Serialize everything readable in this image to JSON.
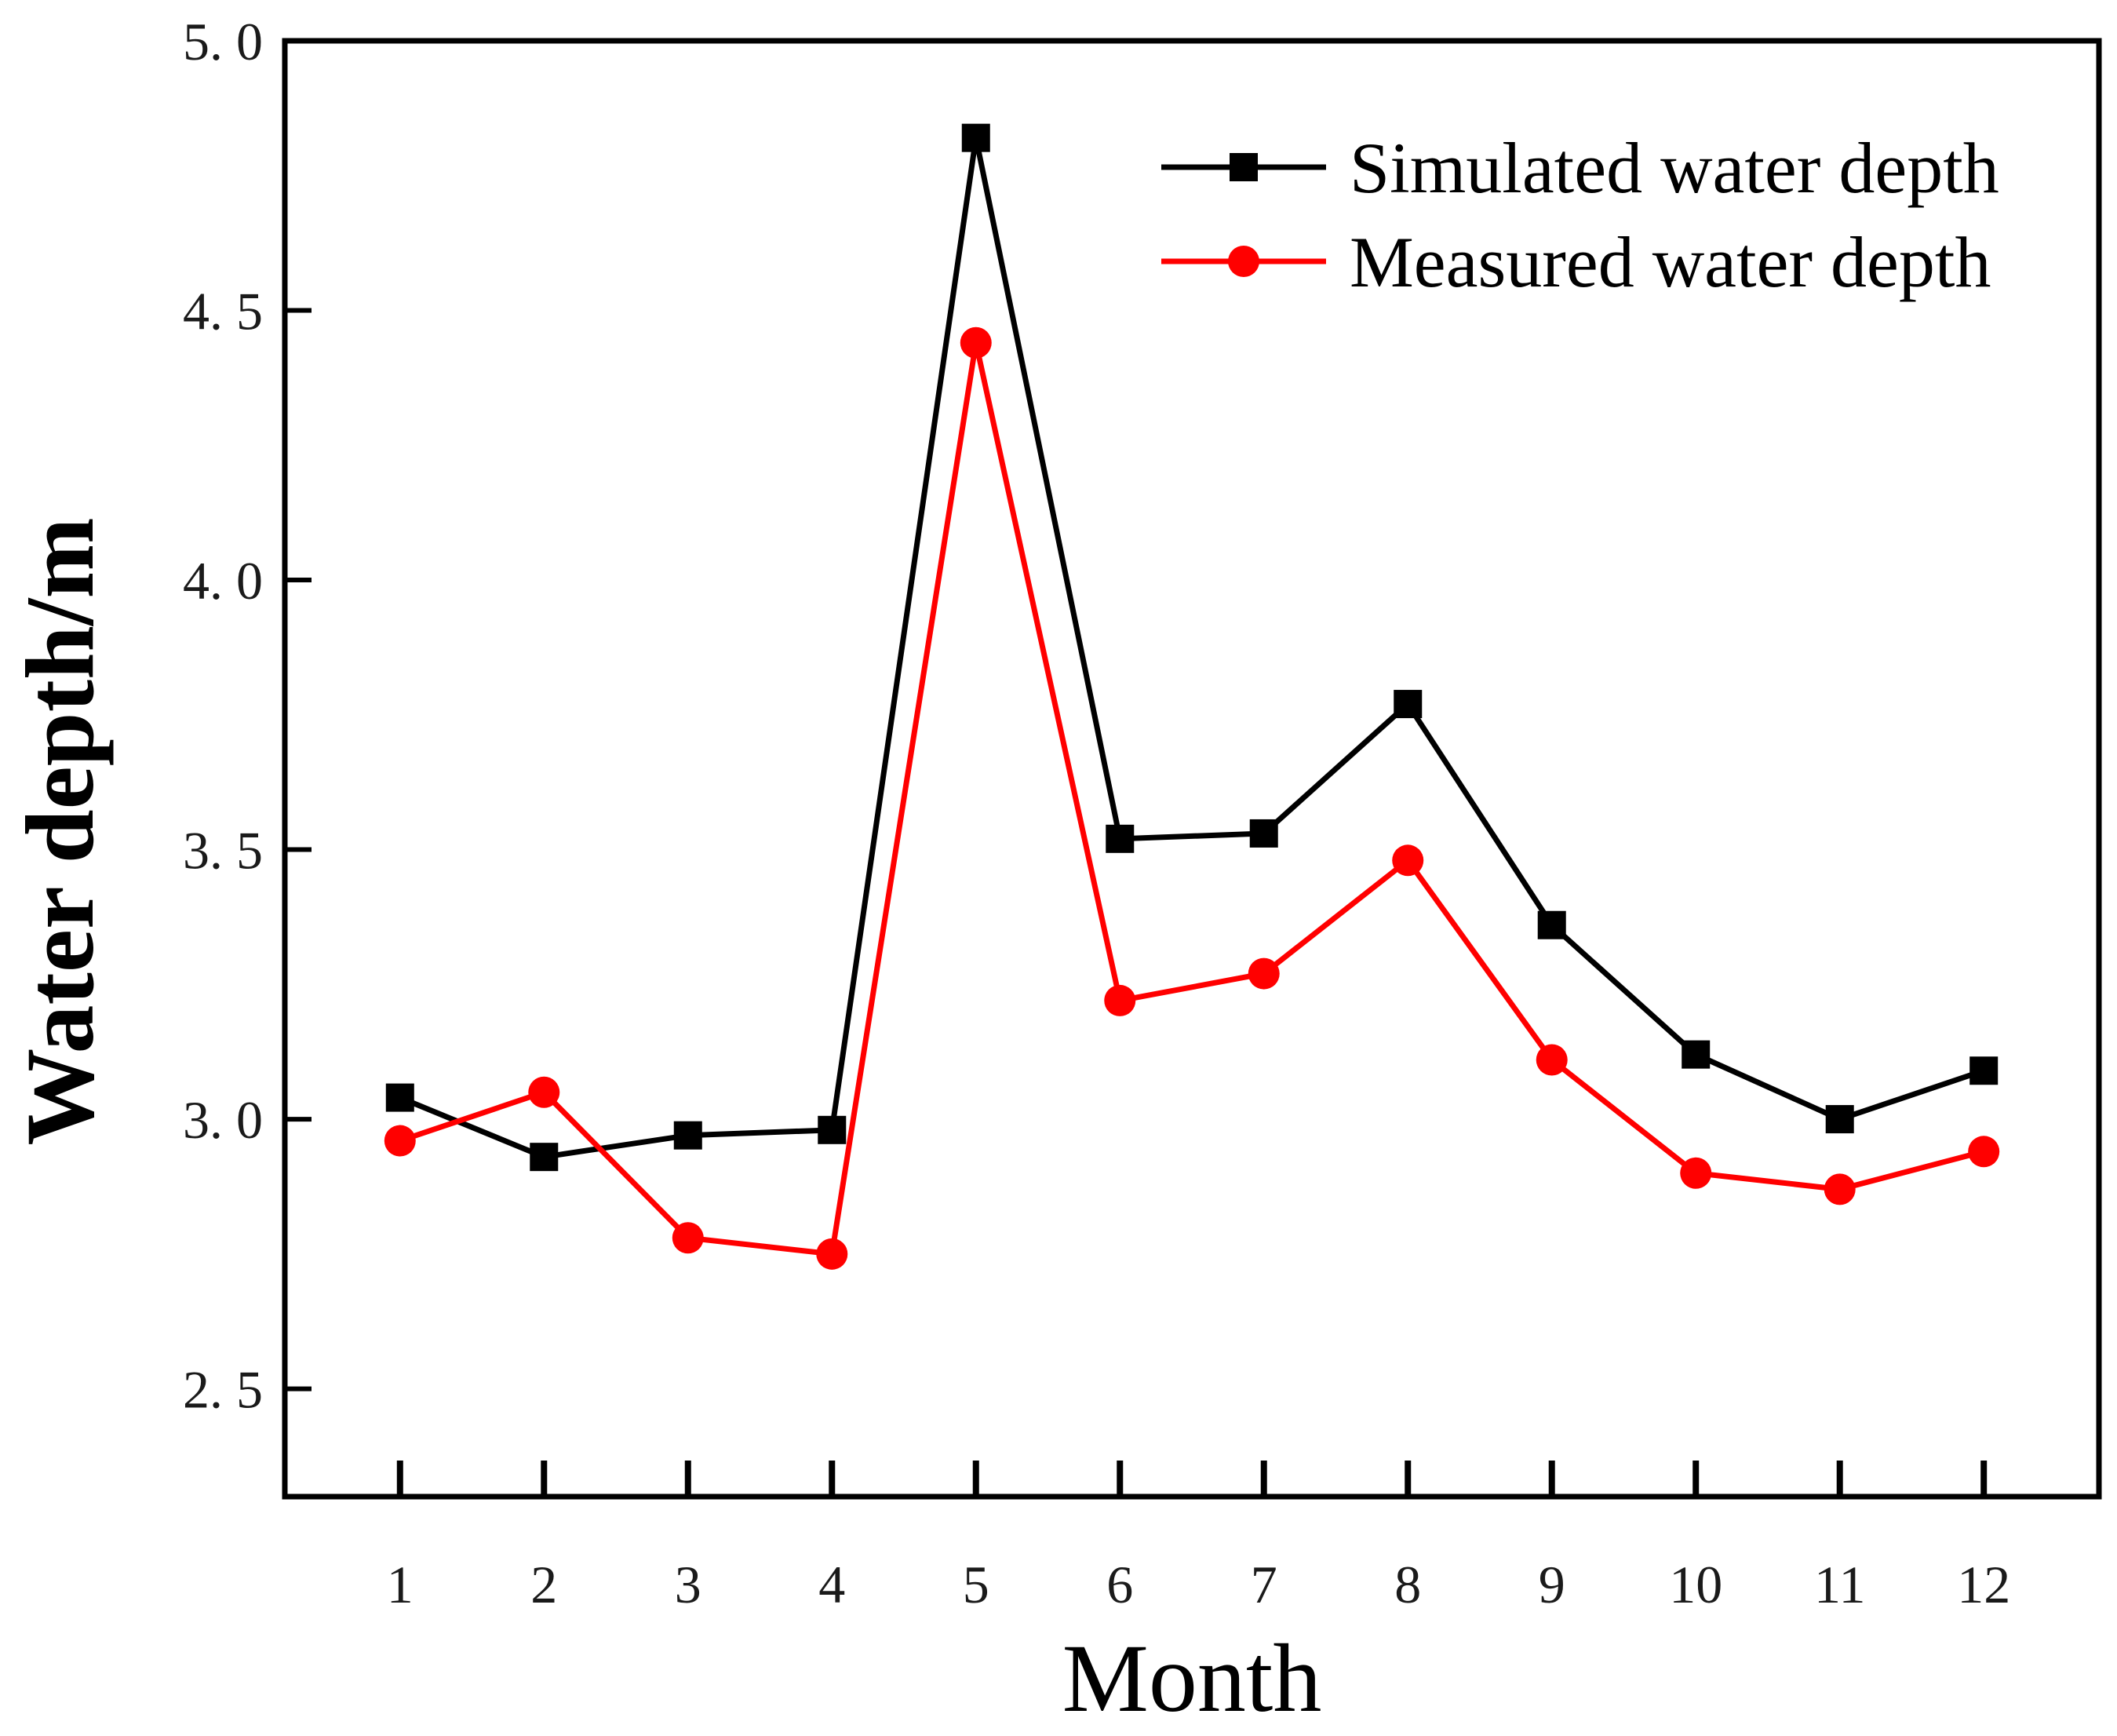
{
  "chart_data": {
    "type": "line",
    "title": "",
    "xlabel": "Month",
    "ylabel": "Water depth/m",
    "categories": [
      "1",
      "2",
      "3",
      "4",
      "5",
      "6",
      "7",
      "8",
      "9",
      "10",
      "11",
      "12"
    ],
    "x": [
      1,
      2,
      3,
      4,
      5,
      6,
      7,
      8,
      9,
      10,
      11,
      12
    ],
    "xlim": [
      0.2,
      12.8
    ],
    "ylim": [
      2.3,
      5.0
    ],
    "yticks": [
      2.5,
      3.0,
      3.5,
      4.0,
      4.5,
      5.0
    ],
    "ytick_labels": [
      "2. 5",
      "3. 0",
      "3. 5",
      "4. 0",
      "4. 5",
      "5. 0"
    ],
    "grid": false,
    "legend_position": "top-right",
    "series": [
      {
        "name": "Simulated water depth",
        "marker": "square",
        "color": "#000000",
        "values": [
          3.04,
          2.93,
          2.97,
          2.98,
          4.82,
          3.52,
          3.53,
          3.77,
          3.36,
          3.12,
          3.0,
          3.09
        ]
      },
      {
        "name": "Measured water depth",
        "marker": "circle",
        "color": "#ff0000",
        "values": [
          2.96,
          3.05,
          2.78,
          2.75,
          4.44,
          3.22,
          3.27,
          3.48,
          3.11,
          2.9,
          2.87,
          2.94
        ]
      }
    ]
  }
}
